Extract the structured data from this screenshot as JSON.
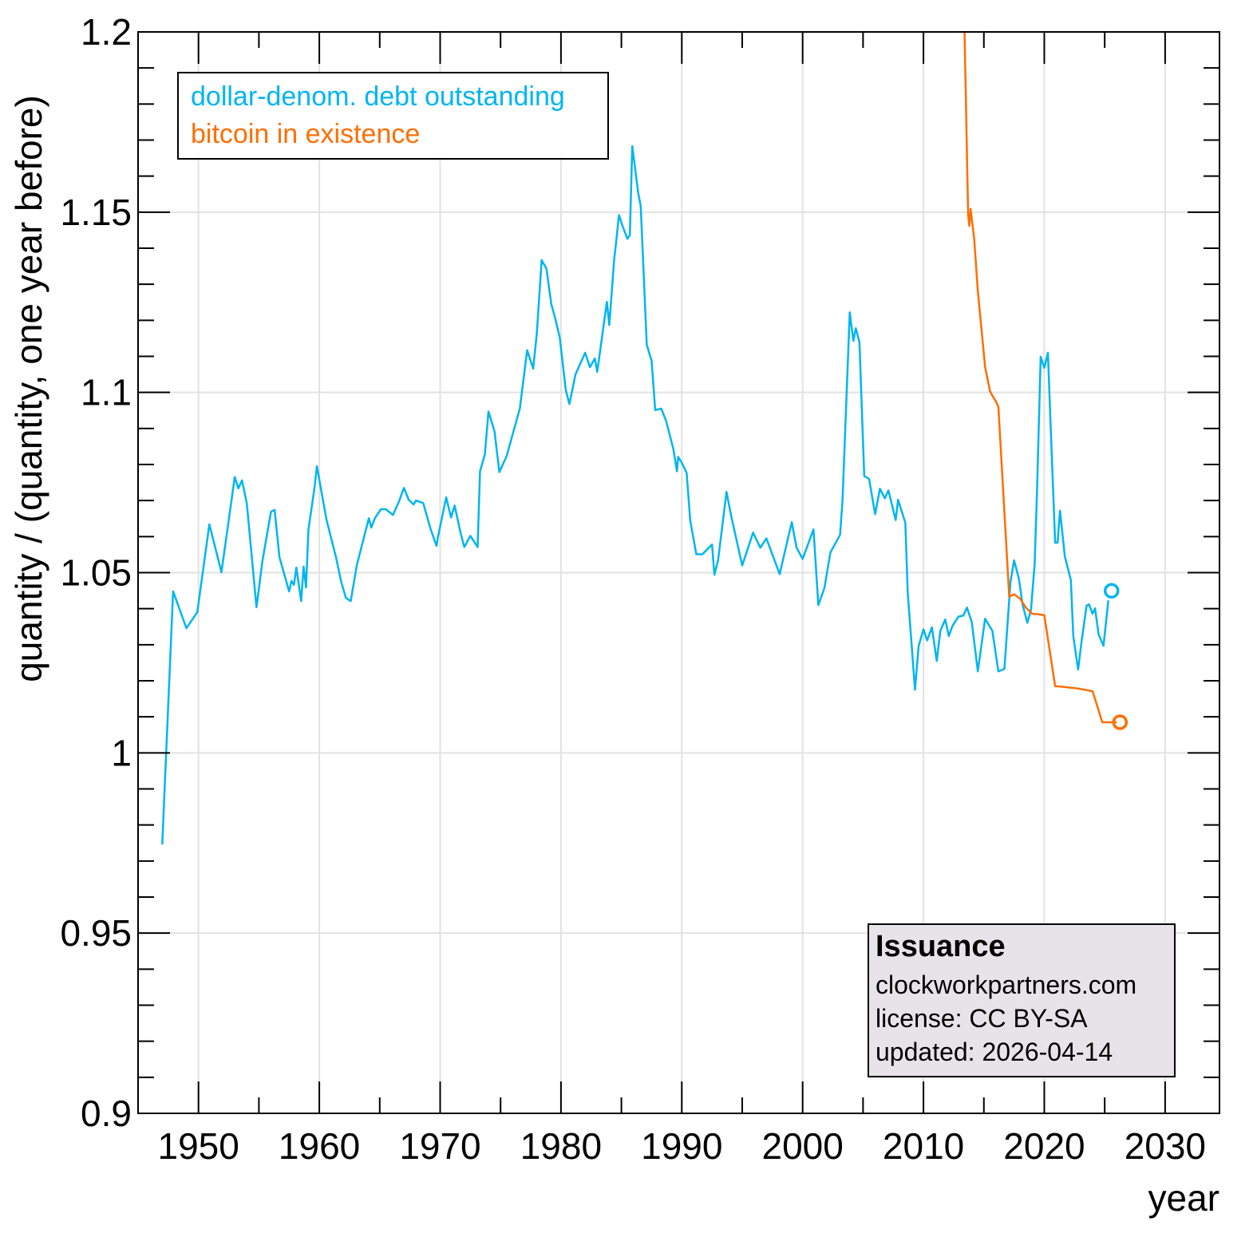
{
  "chart_data": {
    "type": "line",
    "title": "Issuance",
    "xlabel": "year",
    "ylabel": "quantity / (quantity, one year before)",
    "xlim": [
      1945,
      2034.5
    ],
    "ylim": [
      0.9,
      1.2
    ],
    "grid": true,
    "x_ticks": [
      1950,
      1960,
      1970,
      1980,
      1990,
      2000,
      2010,
      2020,
      2030
    ],
    "x_tick_labels": [
      "1950",
      "1960",
      "1970",
      "1980",
      "1990",
      "2000",
      "2010",
      "2020",
      "2030"
    ],
    "y_ticks": [
      0.9,
      0.95,
      1.0,
      1.05,
      1.1,
      1.15,
      1.2
    ],
    "y_tick_labels": [
      "0.9",
      "0.95",
      "1",
      "1.05",
      "1.1",
      "1.15",
      "1.2"
    ],
    "legend_position": "top-left",
    "series": [
      {
        "name": "dollar-denom. debt outstanding",
        "color": "#00b5f0",
        "end_marker": "circle",
        "points": [
          [
            1947.0,
            0.9746
          ],
          [
            1947.9,
            1.0448
          ],
          [
            1949.0,
            1.0346
          ],
          [
            1949.9,
            1.039
          ],
          [
            1950.9,
            1.0634
          ],
          [
            1951.9,
            1.0501
          ],
          [
            1953.0,
            1.0765
          ],
          [
            1953.3,
            1.0734
          ],
          [
            1953.6,
            1.0756
          ],
          [
            1954.0,
            1.0692
          ],
          [
            1954.8,
            1.0404
          ],
          [
            1955.3,
            1.0534
          ],
          [
            1956.0,
            1.0669
          ],
          [
            1956.3,
            1.0674
          ],
          [
            1956.7,
            1.0543
          ],
          [
            1957.5,
            1.0448
          ],
          [
            1957.7,
            1.0477
          ],
          [
            1957.9,
            1.0466
          ],
          [
            1958.1,
            1.0514
          ],
          [
            1958.5,
            1.0421
          ],
          [
            1958.7,
            1.0517
          ],
          [
            1958.9,
            1.0459
          ],
          [
            1959.1,
            1.062
          ],
          [
            1959.6,
            1.0735
          ],
          [
            1959.8,
            1.0795
          ],
          [
            1960.6,
            1.0646
          ],
          [
            1961.4,
            1.054
          ],
          [
            1961.8,
            1.0476
          ],
          [
            1962.2,
            1.043
          ],
          [
            1962.6,
            1.0421
          ],
          [
            1963.1,
            1.052
          ],
          [
            1964.1,
            1.0651
          ],
          [
            1964.3,
            1.0625
          ],
          [
            1964.6,
            1.0651
          ],
          [
            1965.1,
            1.0676
          ],
          [
            1965.5,
            1.0676
          ],
          [
            1966.1,
            1.066
          ],
          [
            1966.6,
            1.0698
          ],
          [
            1967.0,
            1.0735
          ],
          [
            1967.4,
            1.0702
          ],
          [
            1967.8,
            1.0689
          ],
          [
            1968.0,
            1.07
          ],
          [
            1968.6,
            1.0693
          ],
          [
            1969.2,
            1.0622
          ],
          [
            1969.7,
            1.0574
          ],
          [
            1969.8,
            1.0596
          ],
          [
            1970.2,
            1.066
          ],
          [
            1970.5,
            1.0709
          ],
          [
            1970.9,
            1.0653
          ],
          [
            1971.2,
            1.0686
          ],
          [
            1971.7,
            1.0609
          ],
          [
            1972.0,
            1.0571
          ],
          [
            1972.5,
            1.0602
          ],
          [
            1973.1,
            1.0571
          ],
          [
            1973.3,
            1.0781
          ],
          [
            1973.7,
            1.0828
          ],
          [
            1974.0,
            1.0947
          ],
          [
            1974.5,
            1.0892
          ],
          [
            1974.9,
            1.0779
          ],
          [
            1975.5,
            1.0823
          ],
          [
            1976.6,
            1.0956
          ],
          [
            1977.2,
            1.1117
          ],
          [
            1977.7,
            1.1066
          ],
          [
            1978.0,
            1.1163
          ],
          [
            1978.4,
            1.1367
          ],
          [
            1978.8,
            1.1343
          ],
          [
            1979.2,
            1.1245
          ],
          [
            1979.5,
            1.1208
          ],
          [
            1979.9,
            1.1152
          ],
          [
            1980.4,
            1.1006
          ],
          [
            1980.7,
            1.0968
          ],
          [
            1981.2,
            1.105
          ],
          [
            1982.0,
            1.111
          ],
          [
            1982.4,
            1.107
          ],
          [
            1982.8,
            1.1094
          ],
          [
            1983.0,
            1.1057
          ],
          [
            1983.8,
            1.1251
          ],
          [
            1984.0,
            1.1187
          ],
          [
            1984.4,
            1.1368
          ],
          [
            1984.5,
            1.1397
          ],
          [
            1984.8,
            1.1492
          ],
          [
            1985.1,
            1.1461
          ],
          [
            1985.5,
            1.1426
          ],
          [
            1985.7,
            1.1437
          ],
          [
            1985.9,
            1.1683
          ],
          [
            1986.4,
            1.1552
          ],
          [
            1986.6,
            1.1517
          ],
          [
            1987.1,
            1.1132
          ],
          [
            1987.5,
            1.1088
          ],
          [
            1987.8,
            1.0951
          ],
          [
            1988.3,
            1.0955
          ],
          [
            1988.7,
            1.0921
          ],
          [
            1989.3,
            1.0843
          ],
          [
            1989.6,
            1.0781
          ],
          [
            1989.7,
            1.0821
          ],
          [
            1990.0,
            1.0805
          ],
          [
            1990.4,
            1.0777
          ],
          [
            1990.7,
            1.0644
          ],
          [
            1991.2,
            1.0551
          ],
          [
            1991.7,
            1.0551
          ],
          [
            1992.5,
            1.0578
          ],
          [
            1992.7,
            1.0494
          ],
          [
            1993.0,
            1.0534
          ],
          [
            1993.7,
            1.0724
          ],
          [
            1994.1,
            1.0655
          ],
          [
            1995.0,
            1.052
          ],
          [
            1995.9,
            1.0611
          ],
          [
            1996.5,
            1.0569
          ],
          [
            1997.0,
            1.0595
          ],
          [
            1998.1,
            1.0496
          ],
          [
            1999.1,
            1.064
          ],
          [
            1999.5,
            1.0569
          ],
          [
            2000.0,
            1.0538
          ],
          [
            2000.9,
            1.062
          ],
          [
            2001.3,
            1.041
          ],
          [
            2001.8,
            1.0457
          ],
          [
            2002.3,
            1.0556
          ],
          [
            2003.1,
            1.0605
          ],
          [
            2003.3,
            1.07
          ],
          [
            2003.9,
            1.1222
          ],
          [
            2004.2,
            1.1143
          ],
          [
            2004.4,
            1.1178
          ],
          [
            2004.7,
            1.114
          ],
          [
            2005.1,
            1.0768
          ],
          [
            2005.5,
            1.076
          ],
          [
            2006.0,
            1.0662
          ],
          [
            2006.4,
            1.0733
          ],
          [
            2006.8,
            1.0706
          ],
          [
            2007.1,
            1.0728
          ],
          [
            2007.7,
            1.0646
          ],
          [
            2007.9,
            1.0702
          ],
          [
            2008.5,
            1.0638
          ],
          [
            2008.7,
            1.0443
          ],
          [
            2009.3,
            1.0175
          ],
          [
            2009.6,
            1.0296
          ],
          [
            2010.0,
            1.0343
          ],
          [
            2010.3,
            1.0312
          ],
          [
            2010.7,
            1.0348
          ],
          [
            2011.1,
            1.0255
          ],
          [
            2011.4,
            1.0339
          ],
          [
            2011.8,
            1.037
          ],
          [
            2012.1,
            1.0324
          ],
          [
            2012.4,
            1.0352
          ],
          [
            2012.9,
            1.0378
          ],
          [
            2013.3,
            1.0381
          ],
          [
            2013.6,
            1.0403
          ],
          [
            2014.0,
            1.0363
          ],
          [
            2014.5,
            1.0226
          ],
          [
            2015.1,
            1.0372
          ],
          [
            2015.7,
            1.0339
          ],
          [
            2016.2,
            1.0226
          ],
          [
            2016.7,
            1.0233
          ],
          [
            2017.2,
            1.0474
          ],
          [
            2017.5,
            1.0534
          ],
          [
            2017.9,
            1.0483
          ],
          [
            2018.2,
            1.0412
          ],
          [
            2018.6,
            1.0361
          ],
          [
            2018.9,
            1.0397
          ],
          [
            2019.2,
            1.0523
          ],
          [
            2019.4,
            1.0727
          ],
          [
            2019.7,
            1.1099
          ],
          [
            2020.0,
            1.1068
          ],
          [
            2020.3,
            1.111
          ],
          [
            2020.5,
            1.093
          ],
          [
            2020.9,
            1.0583
          ],
          [
            2021.1,
            1.0583
          ],
          [
            2021.3,
            1.0672
          ],
          [
            2021.7,
            1.0545
          ],
          [
            2022.2,
            1.0479
          ],
          [
            2022.4,
            1.0324
          ],
          [
            2022.8,
            1.0231
          ],
          [
            2023.1,
            1.0313
          ],
          [
            2023.5,
            1.0408
          ],
          [
            2023.7,
            1.0412
          ],
          [
            2024.0,
            1.0386
          ],
          [
            2024.2,
            1.0401
          ],
          [
            2024.5,
            1.0328
          ],
          [
            2024.9,
            1.0297
          ],
          [
            2025.3,
            1.0423
          ]
        ]
      },
      {
        "name": "bitcoin in existence",
        "color": "#ff6e00",
        "end_marker": "circle",
        "points": [
          [
            2013.4,
            1.2
          ],
          [
            2013.7,
            1.1491
          ],
          [
            2013.8,
            1.1462
          ],
          [
            2013.9,
            1.1509
          ],
          [
            2014.2,
            1.1425
          ],
          [
            2014.5,
            1.1281
          ],
          [
            2015.1,
            1.1071
          ],
          [
            2015.5,
            1.1004
          ],
          [
            2015.7,
            1.0991
          ],
          [
            2016.0,
            1.0975
          ],
          [
            2016.2,
            1.096
          ],
          [
            2017.1,
            1.0433
          ],
          [
            2017.5,
            1.044
          ],
          [
            2018.0,
            1.0428
          ],
          [
            2018.5,
            1.0402
          ],
          [
            2019.0,
            1.0386
          ],
          [
            2019.6,
            1.0384
          ],
          [
            2020.0,
            1.0382
          ],
          [
            2020.9,
            1.0185
          ],
          [
            2021.6,
            1.0183
          ],
          [
            2022.9,
            1.0178
          ],
          [
            2024.0,
            1.0171
          ],
          [
            2024.8,
            1.0085
          ],
          [
            2026.0,
            1.0085
          ]
        ]
      }
    ]
  },
  "legend": {
    "entries": [
      {
        "label": "dollar-denom. debt outstanding",
        "color": "#00b5f0"
      },
      {
        "label": "bitcoin in existence",
        "color": "#ff6e00"
      }
    ]
  },
  "info_box": {
    "title": "Issuance",
    "site": "clockworkpartners.com",
    "license": "license: CC BY-SA",
    "updated": "updated: 2026-04-14"
  }
}
